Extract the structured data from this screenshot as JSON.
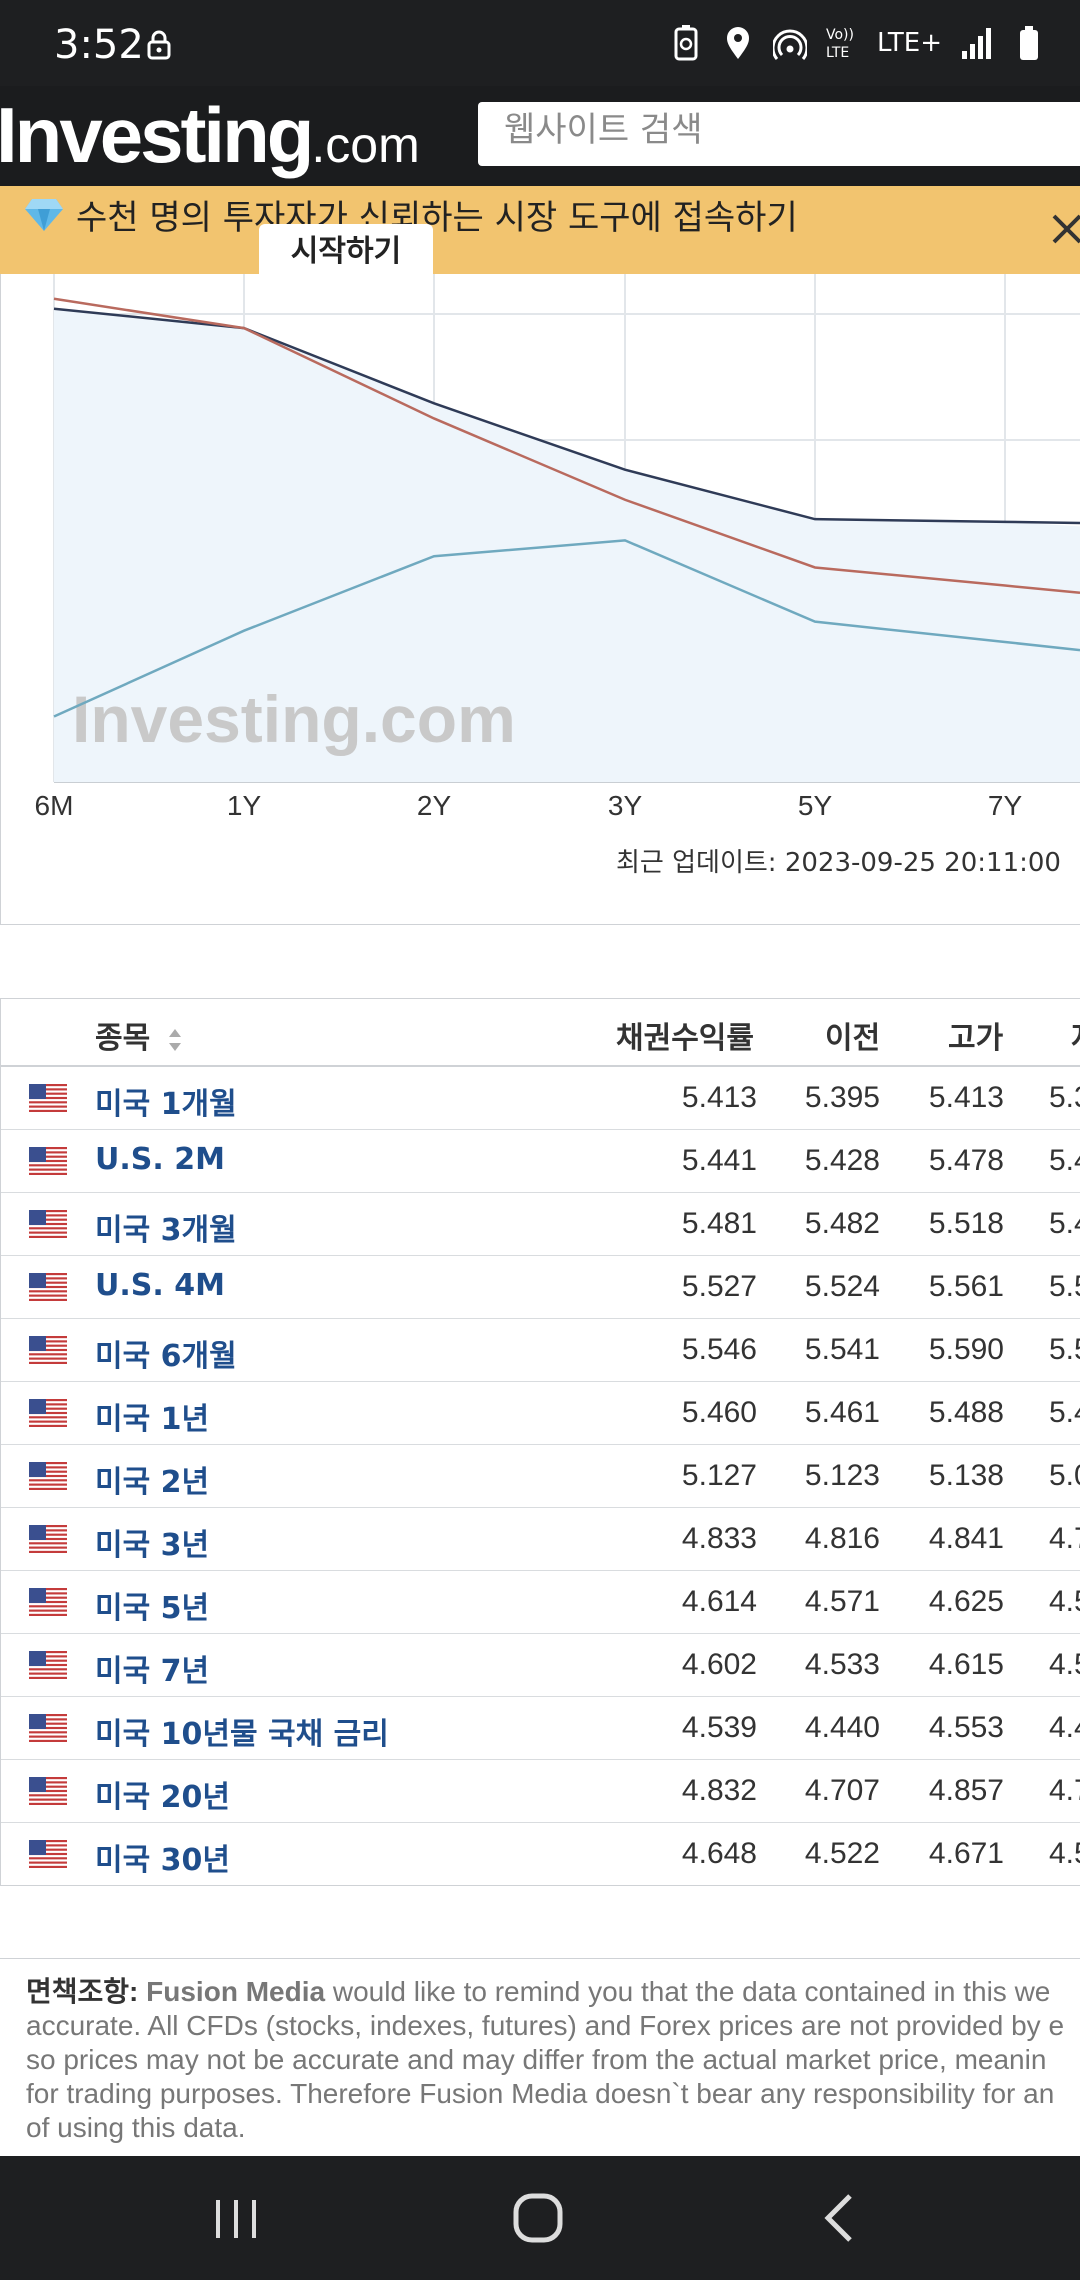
{
  "status_bar": {
    "time": "3:52",
    "network": "LTE+"
  },
  "header": {
    "logo_main": "Investing",
    "logo_suffix": ".com",
    "search_placeholder": "웹사이트 검색"
  },
  "promo": {
    "text": "수천 명의 투자자가 신뢰하는 시장 도구에 접속하기",
    "button": "시작하기"
  },
  "chart_data": {
    "type": "line",
    "x": [
      "6M",
      "1Y",
      "2Y",
      "3Y",
      "5Y",
      "7Y"
    ],
    "series": [
      {
        "values": [
          5.546,
          5.46,
          5.127,
          4.833,
          4.614,
          4.602
        ],
        "color": "#2f3b57"
      },
      {
        "values": [
          5.59,
          5.46,
          5.06,
          4.7,
          4.4,
          4.32
        ],
        "color": "#b96a5e"
      },
      {
        "values": [
          3.74,
          4.12,
          4.45,
          4.52,
          4.16,
          4.07
        ],
        "color": "#6fa9bf"
      }
    ],
    "watermark": "Investing.com",
    "last_update_label": "최근 업데이트:",
    "last_update": "2023-09-25 20:11:00"
  },
  "table": {
    "columns": [
      "종목",
      "채권수익률",
      "이전",
      "고가",
      "저"
    ],
    "rows": [
      {
        "name": "미국 1개월",
        "yield": "5.413",
        "prev": "5.395",
        "high": "5.413",
        "low": "5.3"
      },
      {
        "name": "U.S. 2M",
        "yield": "5.441",
        "prev": "5.428",
        "high": "5.478",
        "low": "5.4"
      },
      {
        "name": "미국 3개월",
        "yield": "5.481",
        "prev": "5.482",
        "high": "5.518",
        "low": "5.4"
      },
      {
        "name": "U.S. 4M",
        "yield": "5.527",
        "prev": "5.524",
        "high": "5.561",
        "low": "5.5"
      },
      {
        "name": "미국 6개월",
        "yield": "5.546",
        "prev": "5.541",
        "high": "5.590",
        "low": "5.5"
      },
      {
        "name": "미국 1년",
        "yield": "5.460",
        "prev": "5.461",
        "high": "5.488",
        "low": "5.4"
      },
      {
        "name": "미국 2년",
        "yield": "5.127",
        "prev": "5.123",
        "high": "5.138",
        "low": "5.0"
      },
      {
        "name": "미국 3년",
        "yield": "4.833",
        "prev": "4.816",
        "high": "4.841",
        "low": "4.7"
      },
      {
        "name": "미국 5년",
        "yield": "4.614",
        "prev": "4.571",
        "high": "4.625",
        "low": "4.5"
      },
      {
        "name": "미국 7년",
        "yield": "4.602",
        "prev": "4.533",
        "high": "4.615",
        "low": "4.5"
      },
      {
        "name": "미국 10년물 국채 금리",
        "yield": "4.539",
        "prev": "4.440",
        "high": "4.553",
        "low": "4.4"
      },
      {
        "name": "미국 20년",
        "yield": "4.832",
        "prev": "4.707",
        "high": "4.857",
        "low": "4.7"
      },
      {
        "name": "미국 30년",
        "yield": "4.648",
        "prev": "4.522",
        "high": "4.671",
        "low": "4.5"
      }
    ]
  },
  "disclaimer": {
    "label": "면책조항:",
    "company": "Fusion Media",
    "lines": [
      " would like to remind you that the data contained in this we",
      "accurate. All CFDs (stocks, indexes, futures) and Forex prices are not provided by e",
      "so prices may not be accurate and may differ from the actual market price, meanin",
      "for trading purposes. Therefore Fusion Media doesn`t bear any responsibility for an",
      "of using this data."
    ]
  },
  "colors": {
    "header_bg": "#1b1c1e",
    "promo_bg": "#f2c46f",
    "link_blue": "#1f4e8c",
    "chart_fill": "#eef5fb"
  }
}
